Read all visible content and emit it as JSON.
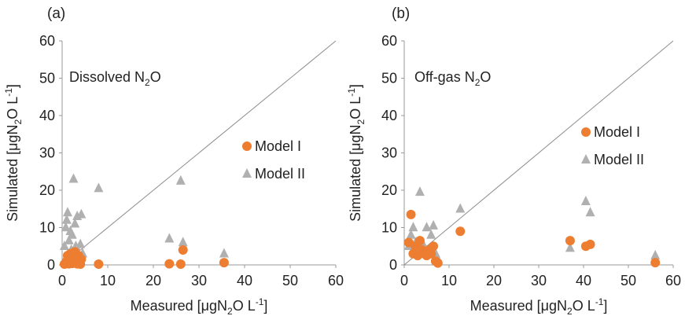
{
  "chart_data": [
    {
      "type": "scatter",
      "panel_label": "(a)",
      "annotation": {
        "text": "Dissolved N",
        "sub": "2",
        "tail": "O"
      },
      "xlabel": {
        "pre": "Measured [μgN",
        "sub": "2",
        "mid": "O L",
        "sup": "-1",
        "post": "]"
      },
      "ylabel": {
        "pre": "Simulated  [μgN",
        "sub": "2",
        "mid": "O L",
        "sup": "-1",
        "post": "]"
      },
      "xlim": [
        0,
        60
      ],
      "ylim": [
        0,
        60
      ],
      "xticks": [
        0,
        10,
        20,
        30,
        40,
        50,
        60
      ],
      "yticks": [
        0,
        10,
        20,
        30,
        40,
        50,
        60
      ],
      "identity_line": true,
      "legend_position": "right-middle",
      "series": [
        {
          "name": "Model I",
          "marker": "circle",
          "color": "#ED7D31",
          "points": [
            [
              0.5,
              0.2
            ],
            [
              0.8,
              0.5
            ],
            [
              1,
              1
            ],
            [
              1.2,
              2.5
            ],
            [
              1.5,
              0.3
            ],
            [
              1.8,
              3
            ],
            [
              2,
              1.5
            ],
            [
              2.2,
              0.4
            ],
            [
              2.5,
              2
            ],
            [
              2.8,
              3.5
            ],
            [
              3,
              1
            ],
            [
              3.3,
              0.3
            ],
            [
              3.6,
              2.5
            ],
            [
              4,
              0.2
            ],
            [
              4.2,
              1.5
            ],
            [
              8,
              0.2
            ],
            [
              23.5,
              0.3
            ],
            [
              26,
              0.2
            ],
            [
              26.5,
              4
            ],
            [
              35.5,
              0.6
            ]
          ]
        },
        {
          "name": "Model II",
          "marker": "triangle",
          "color": "#B0B0B0",
          "points": [
            [
              0.5,
              5
            ],
            [
              0.8,
              10
            ],
            [
              1,
              12
            ],
            [
              1.2,
              14
            ],
            [
              1.5,
              6.5
            ],
            [
              1.8,
              9
            ],
            [
              2,
              4
            ],
            [
              2.2,
              8
            ],
            [
              2.5,
              23
            ],
            [
              2.8,
              11
            ],
            [
              3,
              5
            ],
            [
              3.3,
              13
            ],
            [
              3.8,
              2.5
            ],
            [
              4,
              5.5
            ],
            [
              4.2,
              13.5
            ],
            [
              4.5,
              3
            ],
            [
              8,
              20.5
            ],
            [
              23.5,
              7
            ],
            [
              26,
              22.5
            ],
            [
              26.5,
              6
            ],
            [
              35.5,
              3
            ]
          ]
        }
      ]
    },
    {
      "type": "scatter",
      "panel_label": "(b)",
      "annotation": {
        "text": "Off-gas N",
        "sub": "2",
        "tail": "O"
      },
      "xlabel": {
        "pre": "Measured [μgN",
        "sub": "2",
        "mid": "O L",
        "sup": "-1",
        "post": "]"
      },
      "ylabel": {
        "pre": "Simulated  [μgN",
        "sub": "2",
        "mid": "O L",
        "sup": "-1",
        "post": "]"
      },
      "xlim": [
        0,
        60
      ],
      "ylim": [
        0,
        60
      ],
      "xticks": [
        0,
        10,
        20,
        30,
        40,
        50,
        60
      ],
      "yticks": [
        0,
        10,
        20,
        30,
        40,
        50,
        60
      ],
      "identity_line": true,
      "legend_position": "right-middle",
      "series": [
        {
          "name": "Model I",
          "marker": "circle",
          "color": "#ED7D31",
          "points": [
            [
              1,
              6
            ],
            [
              1.5,
              13.5
            ],
            [
              2,
              3
            ],
            [
              2.5,
              5
            ],
            [
              3,
              2.5
            ],
            [
              3.5,
              6.5
            ],
            [
              4,
              4
            ],
            [
              4.5,
              3
            ],
            [
              5,
              2.5
            ],
            [
              5.5,
              4
            ],
            [
              6,
              3
            ],
            [
              6.5,
              5
            ],
            [
              7,
              1
            ],
            [
              7.5,
              0.5
            ],
            [
              12.5,
              9
            ],
            [
              37,
              6.5
            ],
            [
              40.5,
              5
            ],
            [
              41.5,
              5.5
            ],
            [
              56,
              0.6
            ]
          ]
        },
        {
          "name": "Model II",
          "marker": "triangle",
          "color": "#B0B0B0",
          "points": [
            [
              1,
              5
            ],
            [
              1.5,
              8
            ],
            [
              2,
              10
            ],
            [
              2.5,
              6
            ],
            [
              3,
              4
            ],
            [
              3.5,
              19.5
            ],
            [
              4,
              6
            ],
            [
              4.5,
              3
            ],
            [
              5,
              10
            ],
            [
              5.5,
              4
            ],
            [
              6,
              8
            ],
            [
              6.5,
              10.5
            ],
            [
              7,
              3
            ],
            [
              7.5,
              1.5
            ],
            [
              12.5,
              15
            ],
            [
              37,
              4.5
            ],
            [
              40.5,
              17
            ],
            [
              41.5,
              14
            ],
            [
              56,
              2.5
            ]
          ]
        }
      ]
    }
  ]
}
